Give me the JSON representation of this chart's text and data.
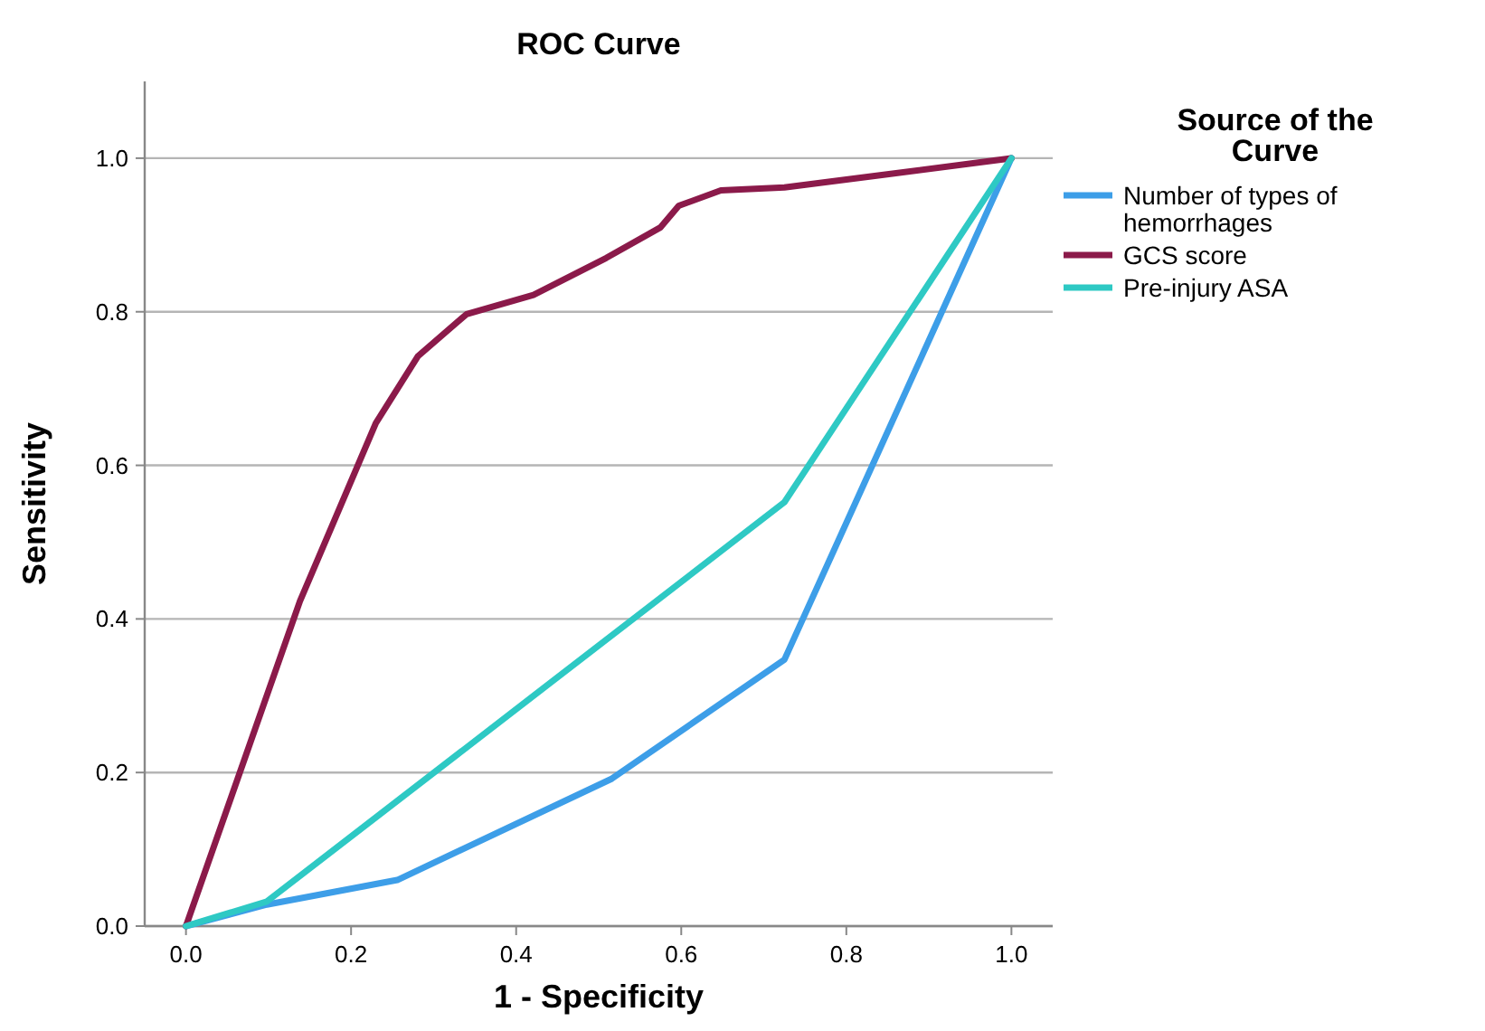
{
  "chart_data": {
    "type": "line",
    "title": "ROC Curve",
    "xlabel": "1 - Specificity",
    "ylabel": "Sensitivity",
    "legend_title": "Source of the Curve",
    "xlim": [
      -0.05,
      1.05
    ],
    "ylim": [
      0,
      1.1
    ],
    "xticks": [
      {
        "value": 0,
        "label": "0.0"
      },
      {
        "value": 0.2,
        "label": "0.2"
      },
      {
        "value": 0.4,
        "label": "0.4"
      },
      {
        "value": 0.6,
        "label": "0.6"
      },
      {
        "value": 0.8,
        "label": "0.8"
      },
      {
        "value": 1,
        "label": "1.0"
      }
    ],
    "yticks": [
      {
        "value": 0,
        "label": "0.0"
      },
      {
        "value": 0.2,
        "label": "0.2"
      },
      {
        "value": 0.4,
        "label": "0.4"
      },
      {
        "value": 0.6,
        "label": "0.6"
      },
      {
        "value": 0.8,
        "label": "0.8"
      },
      {
        "value": 1,
        "label": "1.0"
      }
    ],
    "grid": "y",
    "legend": "top right",
    "marker": "none",
    "line_style": "solid",
    "series": [
      {
        "name": "Number of types of hemorrhages",
        "color": "#3d9ee8",
        "x": [
          0,
          0.098,
          0.256,
          0.516,
          0.725,
          1
        ],
        "values": [
          0,
          0.028,
          0.06,
          0.192,
          0.347,
          1
        ]
      },
      {
        "name": "GCS score",
        "color": "#8b1a4a",
        "x": [
          0,
          0.138,
          0.23,
          0.281,
          0.34,
          0.421,
          0.509,
          0.575,
          0.597,
          0.648,
          0.725,
          0.843,
          1
        ],
        "values": [
          0,
          0.423,
          0.655,
          0.742,
          0.797,
          0.822,
          0.87,
          0.91,
          0.938,
          0.958,
          0.962,
          0.978,
          1
        ]
      },
      {
        "name": "Pre-injury ASA",
        "color": "#2ec9c4",
        "x": [
          0,
          0.098,
          0.725,
          1
        ],
        "values": [
          0,
          0.032,
          0.552,
          1
        ]
      }
    ]
  }
}
